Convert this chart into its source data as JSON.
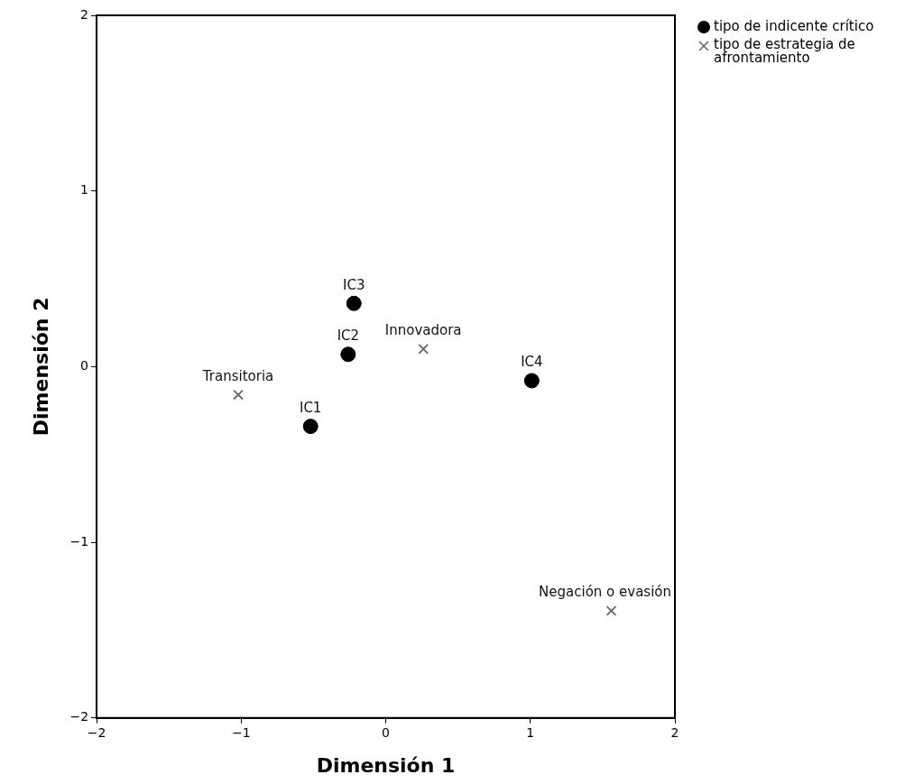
{
  "chart_data": {
    "type": "scatter",
    "xlabel": "Dimensión 1",
    "ylabel": "Dimensión 2",
    "xlim": [
      -2,
      2
    ],
    "ylim": [
      -2,
      2
    ],
    "xticks": [
      -2,
      -1,
      0,
      1,
      2
    ],
    "yticks": [
      -2,
      -1,
      0,
      1,
      2
    ],
    "grid": false,
    "legend": "top right",
    "series": [
      {
        "name": "tipo de indicente crítico",
        "color": "#000000",
        "marker": "circle",
        "x": [
          -0.52,
          -0.26,
          -0.22,
          1.01
        ],
        "values": [
          -0.34,
          0.07,
          0.36,
          -0.08
        ]
      },
      {
        "name": "tipo de estrategia de afrontamiento",
        "color": "#666666",
        "marker": "cross",
        "x": [
          -1.02,
          0.26,
          1.56
        ],
        "values": [
          -0.16,
          0.1,
          -1.39
        ]
      }
    ],
    "annotations": [
      {
        "text": "IC1",
        "x": -0.52,
        "y": -0.34
      },
      {
        "text": "IC2",
        "x": -0.26,
        "y": 0.07
      },
      {
        "text": "IC3",
        "x": -0.22,
        "y": 0.36
      },
      {
        "text": "IC4",
        "x": 1.01,
        "y": -0.08
      },
      {
        "text": "Transitoria",
        "x": -1.02,
        "y": -0.16
      },
      {
        "text": "Innovadora",
        "x": 0.26,
        "y": 0.1
      },
      {
        "text": "Negación o evasión",
        "x": 1.56,
        "y": -1.39
      }
    ]
  }
}
